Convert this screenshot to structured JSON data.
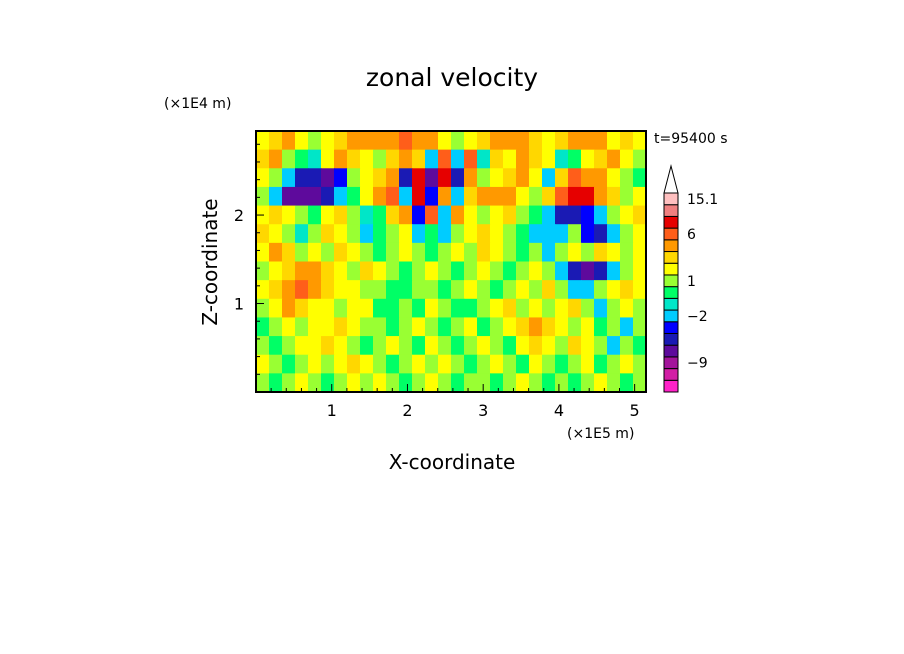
{
  "chart_data": {
    "type": "heatmap",
    "title": "zonal velocity",
    "xlabel": "X-coordinate",
    "ylabel": "Z-coordinate",
    "x_scale_label": "(×1E5 m)",
    "y_scale_label": "(×1E4 m)",
    "time_label": "t=95400 s",
    "xlim": [
      0,
      5.15
    ],
    "ylim": [
      0,
      2.95
    ],
    "x_ticks": [
      1,
      2,
      3,
      4,
      5
    ],
    "x_tick_labels": [
      "1",
      "2",
      "3",
      "4",
      "5"
    ],
    "y_ticks": [
      1,
      2
    ],
    "y_tick_labels": [
      "1",
      "2"
    ],
    "colorbar": {
      "levels": [
        -15,
        -12,
        -9,
        -7,
        -5,
        -3.5,
        -2,
        -1,
        0,
        1,
        2,
        3.5,
        5,
        6,
        9,
        12,
        15.1
      ],
      "colors": [
        "#ff22c8",
        "#d21ea5",
        "#a3149b",
        "#5e0a9c",
        "#1a1ab4",
        "#0000ff",
        "#00ccff",
        "#00e6c8",
        "#00ff66",
        "#99ff33",
        "#ffff00",
        "#ffd700",
        "#ff9900",
        "#ff5e1a",
        "#e60000",
        "#f08080",
        "#ffc0c0"
      ],
      "tick_values": [
        15.1,
        6,
        1,
        -2,
        -9
      ],
      "tick_labels": [
        "15.1",
        "6",
        "1",
        "−2",
        "−9"
      ],
      "extend": "max"
    },
    "grid": false,
    "field": [
      [
        2,
        3,
        4,
        2,
        1,
        2,
        3,
        4,
        5,
        4,
        5,
        6,
        5,
        4,
        2,
        1,
        2,
        3,
        4,
        5,
        4,
        3,
        2,
        3,
        4,
        5,
        4,
        2,
        3,
        2
      ],
      [
        3,
        4,
        1,
        0,
        -1,
        2,
        4,
        3,
        2,
        1,
        3,
        4,
        3,
        -2,
        6,
        -3,
        6,
        -1,
        3,
        2,
        4,
        3,
        2,
        -1,
        0,
        2,
        3,
        4,
        2,
        1
      ],
      [
        2,
        1,
        -3,
        -5,
        -6,
        -7,
        -4,
        1,
        2,
        3,
        4,
        -6,
        8,
        -8,
        7,
        -6,
        5,
        1,
        2,
        3,
        4,
        2,
        -2,
        3,
        6,
        5,
        4,
        2,
        1,
        0
      ],
      [
        1,
        -2,
        -7,
        -8,
        -7,
        -6,
        -3,
        0,
        2,
        4,
        6,
        -3,
        7,
        -4,
        5,
        -2,
        3,
        4,
        5,
        4,
        2,
        1,
        3,
        6,
        8,
        7,
        5,
        3,
        1,
        2
      ],
      [
        2,
        3,
        2,
        1,
        0,
        2,
        3,
        1,
        -1,
        0,
        3,
        5,
        -4,
        6,
        -3,
        4,
        2,
        1,
        2,
        3,
        1,
        0,
        -2,
        -5,
        -6,
        -4,
        -3,
        1,
        2,
        3
      ],
      [
        3,
        2,
        1,
        -1,
        1,
        3,
        2,
        1,
        -2,
        0,
        1,
        2,
        -3,
        0,
        -2,
        1,
        2,
        3,
        2,
        1,
        0,
        -2,
        -3,
        -2,
        1,
        -4,
        -5,
        -2,
        1,
        2
      ],
      [
        2,
        4,
        3,
        1,
        2,
        1,
        3,
        2,
        1,
        0,
        1,
        2,
        1,
        0,
        1,
        2,
        1,
        3,
        2,
        1,
        0,
        1,
        -2,
        1,
        2,
        1,
        3,
        2,
        1,
        2
      ],
      [
        1,
        2,
        3,
        4,
        5,
        3,
        2,
        1,
        3,
        2,
        1,
        0,
        1,
        2,
        1,
        0,
        1,
        2,
        1,
        0,
        1,
        2,
        1,
        -3,
        -5,
        -8,
        -6,
        -2,
        1,
        2
      ],
      [
        2,
        3,
        5,
        6,
        4,
        3,
        2,
        2,
        1,
        1,
        0,
        0,
        1,
        1,
        0,
        1,
        2,
        1,
        0,
        1,
        2,
        1,
        3,
        1,
        -2,
        -3,
        1,
        2,
        3,
        2
      ],
      [
        1,
        2,
        4,
        3,
        2,
        2,
        1,
        2,
        2,
        0,
        0,
        1,
        0,
        2,
        1,
        0,
        0,
        1,
        2,
        3,
        1,
        2,
        1,
        2,
        3,
        1,
        -2,
        1,
        2,
        1
      ],
      [
        0,
        1,
        2,
        1,
        2,
        2,
        3,
        2,
        1,
        1,
        0,
        1,
        2,
        1,
        0,
        1,
        2,
        0,
        1,
        2,
        3,
        4,
        3,
        2,
        1,
        2,
        0,
        1,
        -3,
        1
      ],
      [
        1,
        0,
        1,
        2,
        2,
        3,
        2,
        1,
        0,
        1,
        2,
        1,
        0,
        2,
        1,
        0,
        1,
        2,
        1,
        0,
        2,
        3,
        2,
        1,
        3,
        2,
        1,
        -2,
        1,
        0
      ],
      [
        2,
        1,
        0,
        1,
        2,
        1,
        2,
        3,
        2,
        1,
        0,
        1,
        2,
        1,
        2,
        1,
        0,
        1,
        2,
        1,
        0,
        2,
        1,
        0,
        1,
        2,
        0,
        1,
        2,
        1
      ],
      [
        1,
        0,
        1,
        2,
        1,
        0,
        1,
        2,
        1,
        2,
        1,
        0,
        1,
        2,
        1,
        0,
        1,
        1,
        0,
        1,
        2,
        1,
        0,
        1,
        0,
        1,
        2,
        1,
        0,
        1
      ]
    ]
  }
}
